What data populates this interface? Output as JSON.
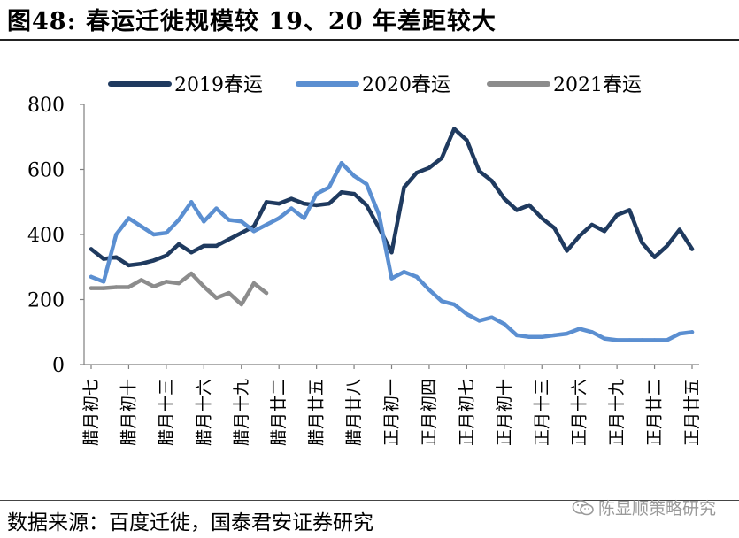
{
  "header": {
    "title": "图48: 春运迁徙规模较 19、20 年差距较大"
  },
  "footer": {
    "source": "数据来源：百度迁徙，国泰君安证券研究",
    "watermark": "陈显顺策略研究"
  },
  "chart_data": {
    "type": "line",
    "title": "",
    "xlabel": "",
    "ylabel": "",
    "ylim": [
      0,
      800
    ],
    "yticks": [
      0,
      200,
      400,
      600,
      800
    ],
    "grid": false,
    "legend_position": "top",
    "tick_labels": [
      "腊月初七",
      "腊月初十",
      "腊月十三",
      "腊月十六",
      "腊月十九",
      "腊月廿二",
      "腊月廿五",
      "腊月廿八",
      "正月初一",
      "正月初四",
      "正月初七",
      "正月初十",
      "正月十三",
      "正月十六",
      "正月十九",
      "正月廿二",
      "正月廿五"
    ],
    "tick_every": 3,
    "num_points": 49,
    "series": [
      {
        "name": "2019春运",
        "color": "#1f3a5f",
        "values": [
          355,
          325,
          330,
          305,
          310,
          320,
          335,
          370,
          345,
          365,
          365,
          385,
          405,
          425,
          500,
          495,
          510,
          495,
          490,
          495,
          530,
          525,
          490,
          420,
          345,
          545,
          590,
          605,
          635,
          725,
          690,
          595,
          565,
          510,
          475,
          490,
          450,
          420,
          350,
          395,
          430,
          410,
          460,
          475,
          375,
          330,
          365,
          415,
          355
        ]
      },
      {
        "name": "2020春运",
        "color": "#5b8fd1",
        "values": [
          270,
          255,
          400,
          450,
          425,
          400,
          405,
          445,
          500,
          440,
          480,
          445,
          440,
          410,
          430,
          450,
          480,
          450,
          525,
          545,
          620,
          580,
          555,
          460,
          265,
          285,
          270,
          230,
          195,
          185,
          155,
          135,
          145,
          125,
          90,
          85,
          85,
          90,
          95,
          110,
          100,
          80,
          75,
          75,
          75,
          75,
          75,
          95,
          100
        ]
      },
      {
        "name": "2021春运",
        "color": "#8c8c8c",
        "values": [
          235,
          235,
          238,
          238,
          260,
          240,
          255,
          250,
          280,
          240,
          205,
          220,
          185,
          250,
          220
        ]
      }
    ]
  }
}
